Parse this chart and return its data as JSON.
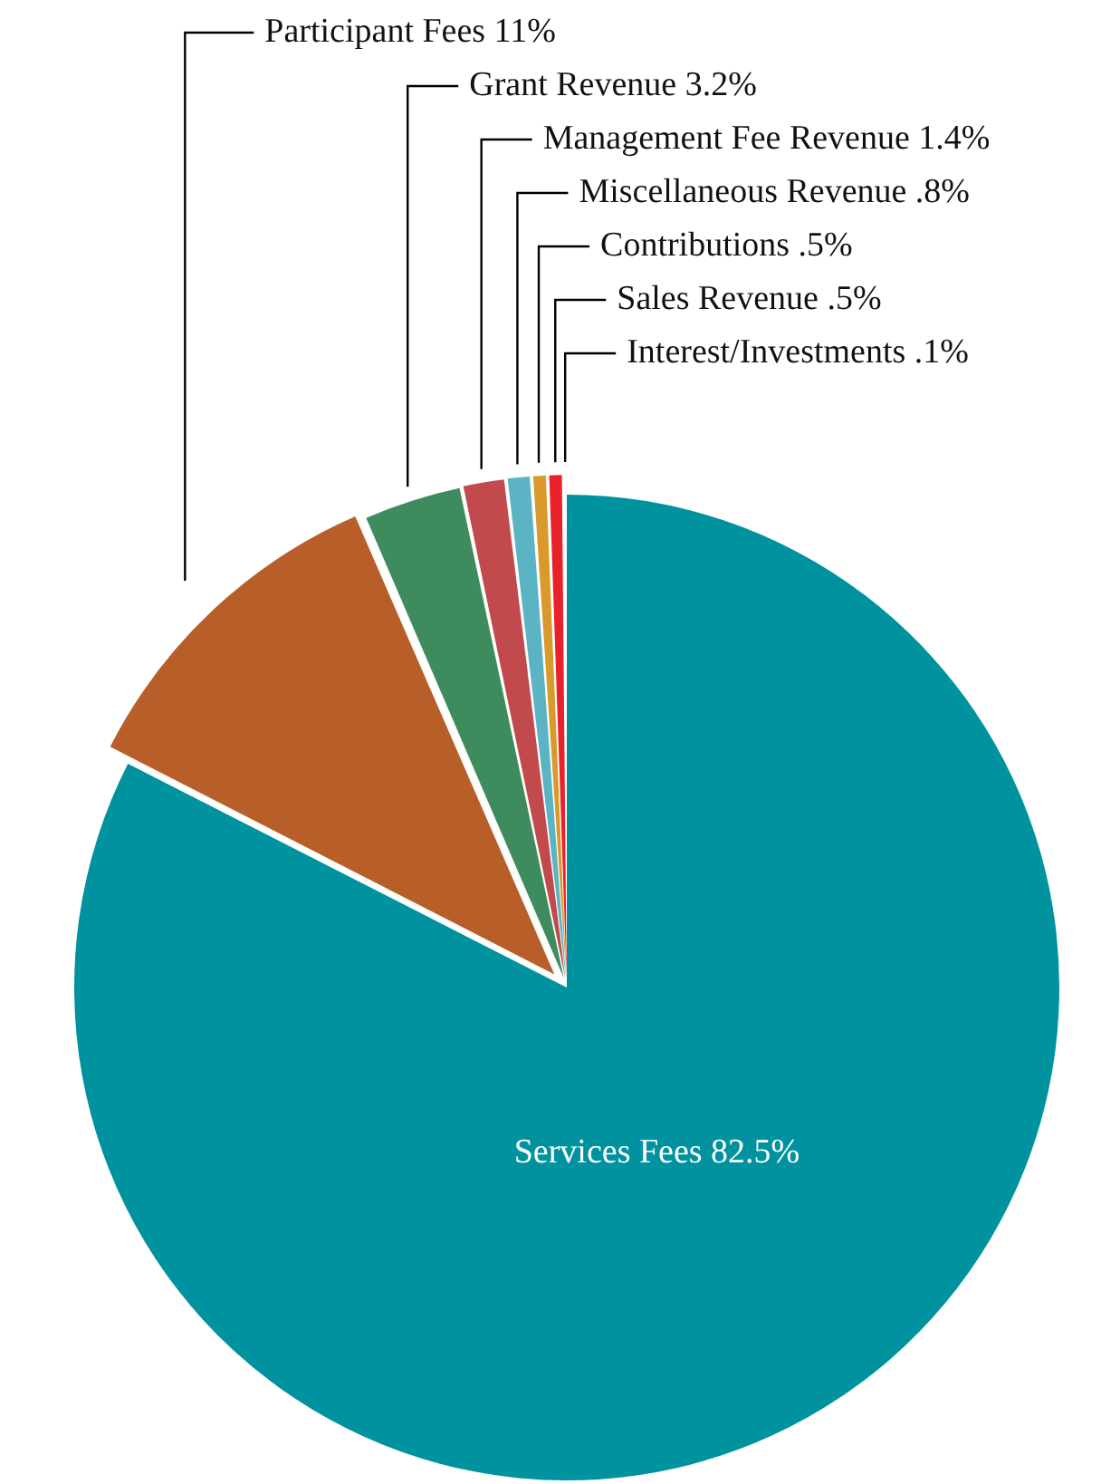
{
  "chart_data": {
    "type": "pie",
    "categories": [
      "Services Fees",
      "Participant Fees",
      "Grant Revenue",
      "Management Fee Revenue",
      "Miscellaneous Revenue",
      "Contributions",
      "Sales Revenue",
      "Interest/Investments"
    ],
    "values": [
      82.5,
      11,
      3.2,
      1.4,
      0.8,
      0.5,
      0.5,
      0.1
    ],
    "colors": [
      "#00929f",
      "#b85e28",
      "#3e8c5e",
      "#c24a4c",
      "#5ab4c4",
      "#d99a2b",
      "#e8212b",
      "#9e1b20"
    ],
    "value_labels": [
      "82.5%",
      "11%",
      "3.2%",
      "1.4%",
      ".8%",
      ".5%",
      ".5%",
      ".1%"
    ]
  }
}
